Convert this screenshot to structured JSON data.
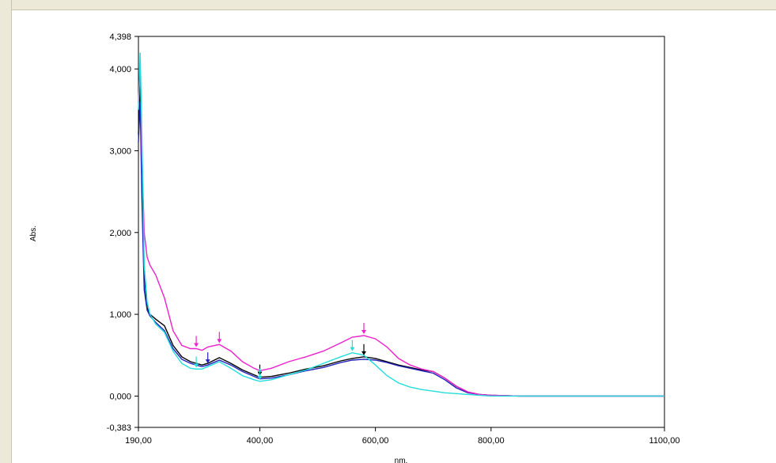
{
  "chart_data": {
    "type": "line",
    "xlabel": "nm.",
    "ylabel": "Abs.",
    "xlim": [
      190,
      1100
    ],
    "ylim": [
      -0.383,
      4.398
    ],
    "x_ticks": [
      {
        "value": 190,
        "label": "190,00"
      },
      {
        "value": 400,
        "label": "400,00"
      },
      {
        "value": 600,
        "label": "600,00"
      },
      {
        "value": 800,
        "label": "800,00"
      },
      {
        "value": 1100,
        "label": "1100,00"
      }
    ],
    "y_ticks": [
      {
        "value": 4.398,
        "label": "4,398"
      },
      {
        "value": 4.0,
        "label": "4,000"
      },
      {
        "value": 3.0,
        "label": "3,000"
      },
      {
        "value": 2.0,
        "label": "2,000"
      },
      {
        "value": 1.0,
        "label": "1,000"
      },
      {
        "value": 0.0,
        "label": "0,000"
      },
      {
        "value": -0.383,
        "label": "-0,383"
      }
    ],
    "grid": false,
    "series": [
      {
        "color": "#000000",
        "x": [
          190,
          193,
          196,
          200,
          205,
          210,
          220,
          235,
          250,
          265,
          280,
          290,
          300,
          310,
          330,
          350,
          370,
          390,
          400,
          420,
          450,
          480,
          510,
          540,
          560,
          580,
          600,
          620,
          640,
          660,
          680,
          700,
          720,
          740,
          760,
          780,
          800,
          850,
          1000,
          1100
        ],
        "y": [
          3.2,
          3.8,
          2.6,
          1.5,
          1.08,
          1.0,
          0.94,
          0.86,
          0.62,
          0.48,
          0.42,
          0.4,
          0.38,
          0.4,
          0.47,
          0.4,
          0.32,
          0.26,
          0.23,
          0.24,
          0.28,
          0.33,
          0.37,
          0.43,
          0.46,
          0.48,
          0.46,
          0.42,
          0.38,
          0.35,
          0.32,
          0.3,
          0.22,
          0.12,
          0.05,
          0.02,
          0.01,
          0.0,
          0.0,
          0.0
        ]
      },
      {
        "color": "#2222bb",
        "x": [
          190,
          193,
          196,
          200,
          205,
          210,
          220,
          235,
          250,
          265,
          280,
          290,
          300,
          310,
          330,
          350,
          370,
          390,
          400,
          420,
          450,
          480,
          510,
          540,
          560,
          580,
          600,
          620,
          640,
          660,
          680,
          700,
          720,
          740,
          760,
          780,
          800,
          850,
          1000,
          1100
        ],
        "y": [
          3.1,
          3.6,
          2.4,
          1.3,
          1.05,
          0.98,
          0.9,
          0.8,
          0.58,
          0.45,
          0.4,
          0.38,
          0.36,
          0.38,
          0.44,
          0.38,
          0.3,
          0.24,
          0.21,
          0.22,
          0.26,
          0.31,
          0.35,
          0.41,
          0.44,
          0.45,
          0.44,
          0.41,
          0.37,
          0.34,
          0.31,
          0.28,
          0.2,
          0.1,
          0.04,
          0.02,
          0.01,
          0.0,
          0.0,
          0.0
        ]
      },
      {
        "color": "#ee22cc",
        "x": [
          190,
          193,
          196,
          200,
          205,
          210,
          220,
          235,
          250,
          265,
          280,
          290,
          300,
          310,
          330,
          350,
          370,
          390,
          400,
          420,
          450,
          480,
          510,
          540,
          560,
          580,
          600,
          620,
          640,
          660,
          680,
          700,
          720,
          740,
          760,
          780,
          800,
          850,
          1000,
          1100
        ],
        "y": [
          3.6,
          4.0,
          3.0,
          2.0,
          1.7,
          1.6,
          1.48,
          1.2,
          0.8,
          0.62,
          0.58,
          0.58,
          0.56,
          0.6,
          0.63,
          0.55,
          0.42,
          0.34,
          0.31,
          0.34,
          0.42,
          0.48,
          0.55,
          0.65,
          0.72,
          0.74,
          0.7,
          0.6,
          0.46,
          0.38,
          0.33,
          0.3,
          0.22,
          0.12,
          0.05,
          0.02,
          0.01,
          0.0,
          0.0,
          0.0
        ]
      },
      {
        "color": "#22dddd",
        "x": [
          190,
          193,
          196,
          200,
          205,
          210,
          220,
          235,
          250,
          265,
          280,
          290,
          300,
          310,
          330,
          350,
          370,
          390,
          400,
          420,
          450,
          480,
          510,
          540,
          560,
          580,
          600,
          620,
          640,
          660,
          680,
          700,
          720,
          740,
          760,
          780,
          800,
          850,
          1000,
          1100
        ],
        "y": [
          3.5,
          4.2,
          3.2,
          1.6,
          1.15,
          1.0,
          0.88,
          0.78,
          0.55,
          0.4,
          0.34,
          0.33,
          0.33,
          0.36,
          0.42,
          0.34,
          0.25,
          0.2,
          0.18,
          0.2,
          0.26,
          0.32,
          0.4,
          0.48,
          0.53,
          0.5,
          0.38,
          0.25,
          0.16,
          0.11,
          0.08,
          0.06,
          0.04,
          0.03,
          0.02,
          0.01,
          0.0,
          0.0,
          0.0,
          0.0
        ]
      }
    ]
  }
}
